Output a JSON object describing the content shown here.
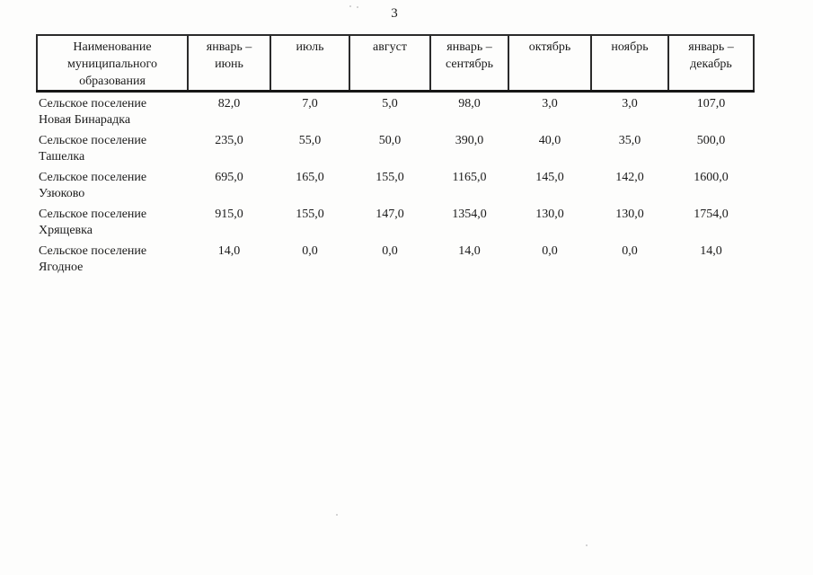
{
  "page": {
    "number": "3"
  },
  "table": {
    "columns": [
      {
        "label": "Наименование\nмуниципального\nобразования"
      },
      {
        "label": "январь –\nиюнь"
      },
      {
        "label": "июль"
      },
      {
        "label": "август"
      },
      {
        "label": "январь –\nсентябрь"
      },
      {
        "label": "октябрь"
      },
      {
        "label": "ноябрь"
      },
      {
        "label": "январь –\nдекабрь"
      }
    ],
    "rows": [
      {
        "name": "Сельское поселение\nНовая Бинарадка",
        "values": [
          "82,0",
          "7,0",
          "5,0",
          "98,0",
          "3,0",
          "3,0",
          "107,0"
        ]
      },
      {
        "name": "Сельское поселение\nТашелка",
        "values": [
          "235,0",
          "55,0",
          "50,0",
          "390,0",
          "40,0",
          "35,0",
          "500,0"
        ]
      },
      {
        "name": "Сельское поселение\nУзюково",
        "values": [
          "695,0",
          "165,0",
          "155,0",
          "1165,0",
          "145,0",
          "142,0",
          "1600,0"
        ]
      },
      {
        "name": "Сельское поселение\nХрящевка",
        "values": [
          "915,0",
          "155,0",
          "147,0",
          "1354,0",
          "130,0",
          "130,0",
          "1754,0"
        ]
      },
      {
        "name": "Сельское поселение\nЯгодное",
        "values": [
          "14,0",
          "0,0",
          "0,0",
          "14,0",
          "0,0",
          "0,0",
          "14,0"
        ]
      }
    ]
  }
}
